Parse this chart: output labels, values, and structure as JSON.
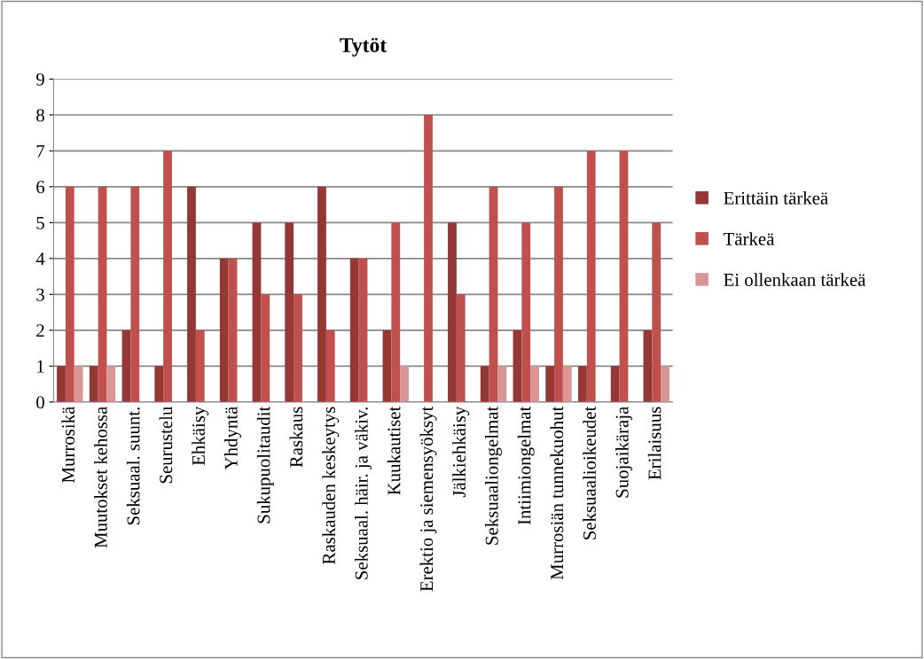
{
  "chart_data": {
    "type": "bar",
    "title": "Tytöt",
    "categories": [
      "Murrosikä",
      "Muutokset kehossa",
      "Seksuaal. suunt.",
      "Seurustelu",
      "Ehkäisy",
      "Yhdyntä",
      "Sukupuolitaudit",
      "Raskaus",
      "Raskauden keskeytys",
      "Seksuaal. häir. ja väkiv.",
      "Kuukautiset",
      "Erektio ja siemensyöksyt",
      "Jälkiehkäisy",
      "Seksuaaliongelmat",
      "Intiimiongelmat",
      "Murrosiän tunnekuohut",
      "Seksuaalioikeudet",
      "Suojaikäraja",
      "Erilaisuus"
    ],
    "series": [
      {
        "name": "Erittäin tärkeä",
        "color": "#953735",
        "values": [
          1,
          1,
          2,
          1,
          6,
          4,
          5,
          5,
          6,
          4,
          2,
          0,
          5,
          1,
          2,
          1,
          1,
          1,
          2
        ]
      },
      {
        "name": "Tärkeä",
        "color": "#c0504d",
        "values": [
          6,
          6,
          6,
          7,
          2,
          4,
          3,
          3,
          2,
          4,
          5,
          8,
          3,
          6,
          5,
          6,
          7,
          7,
          5
        ]
      },
      {
        "name": "Ei ollenkaan tärkeä",
        "color": "#d99694",
        "values": [
          1,
          1,
          0,
          0,
          0,
          0,
          0,
          0,
          0,
          0,
          1,
          0,
          0,
          1,
          1,
          1,
          0,
          0,
          1
        ]
      }
    ],
    "ylim": [
      0,
      9
    ],
    "yticks": [
      0,
      1,
      2,
      3,
      4,
      5,
      6,
      7,
      8,
      9
    ],
    "grid": "y",
    "legend": "right"
  }
}
